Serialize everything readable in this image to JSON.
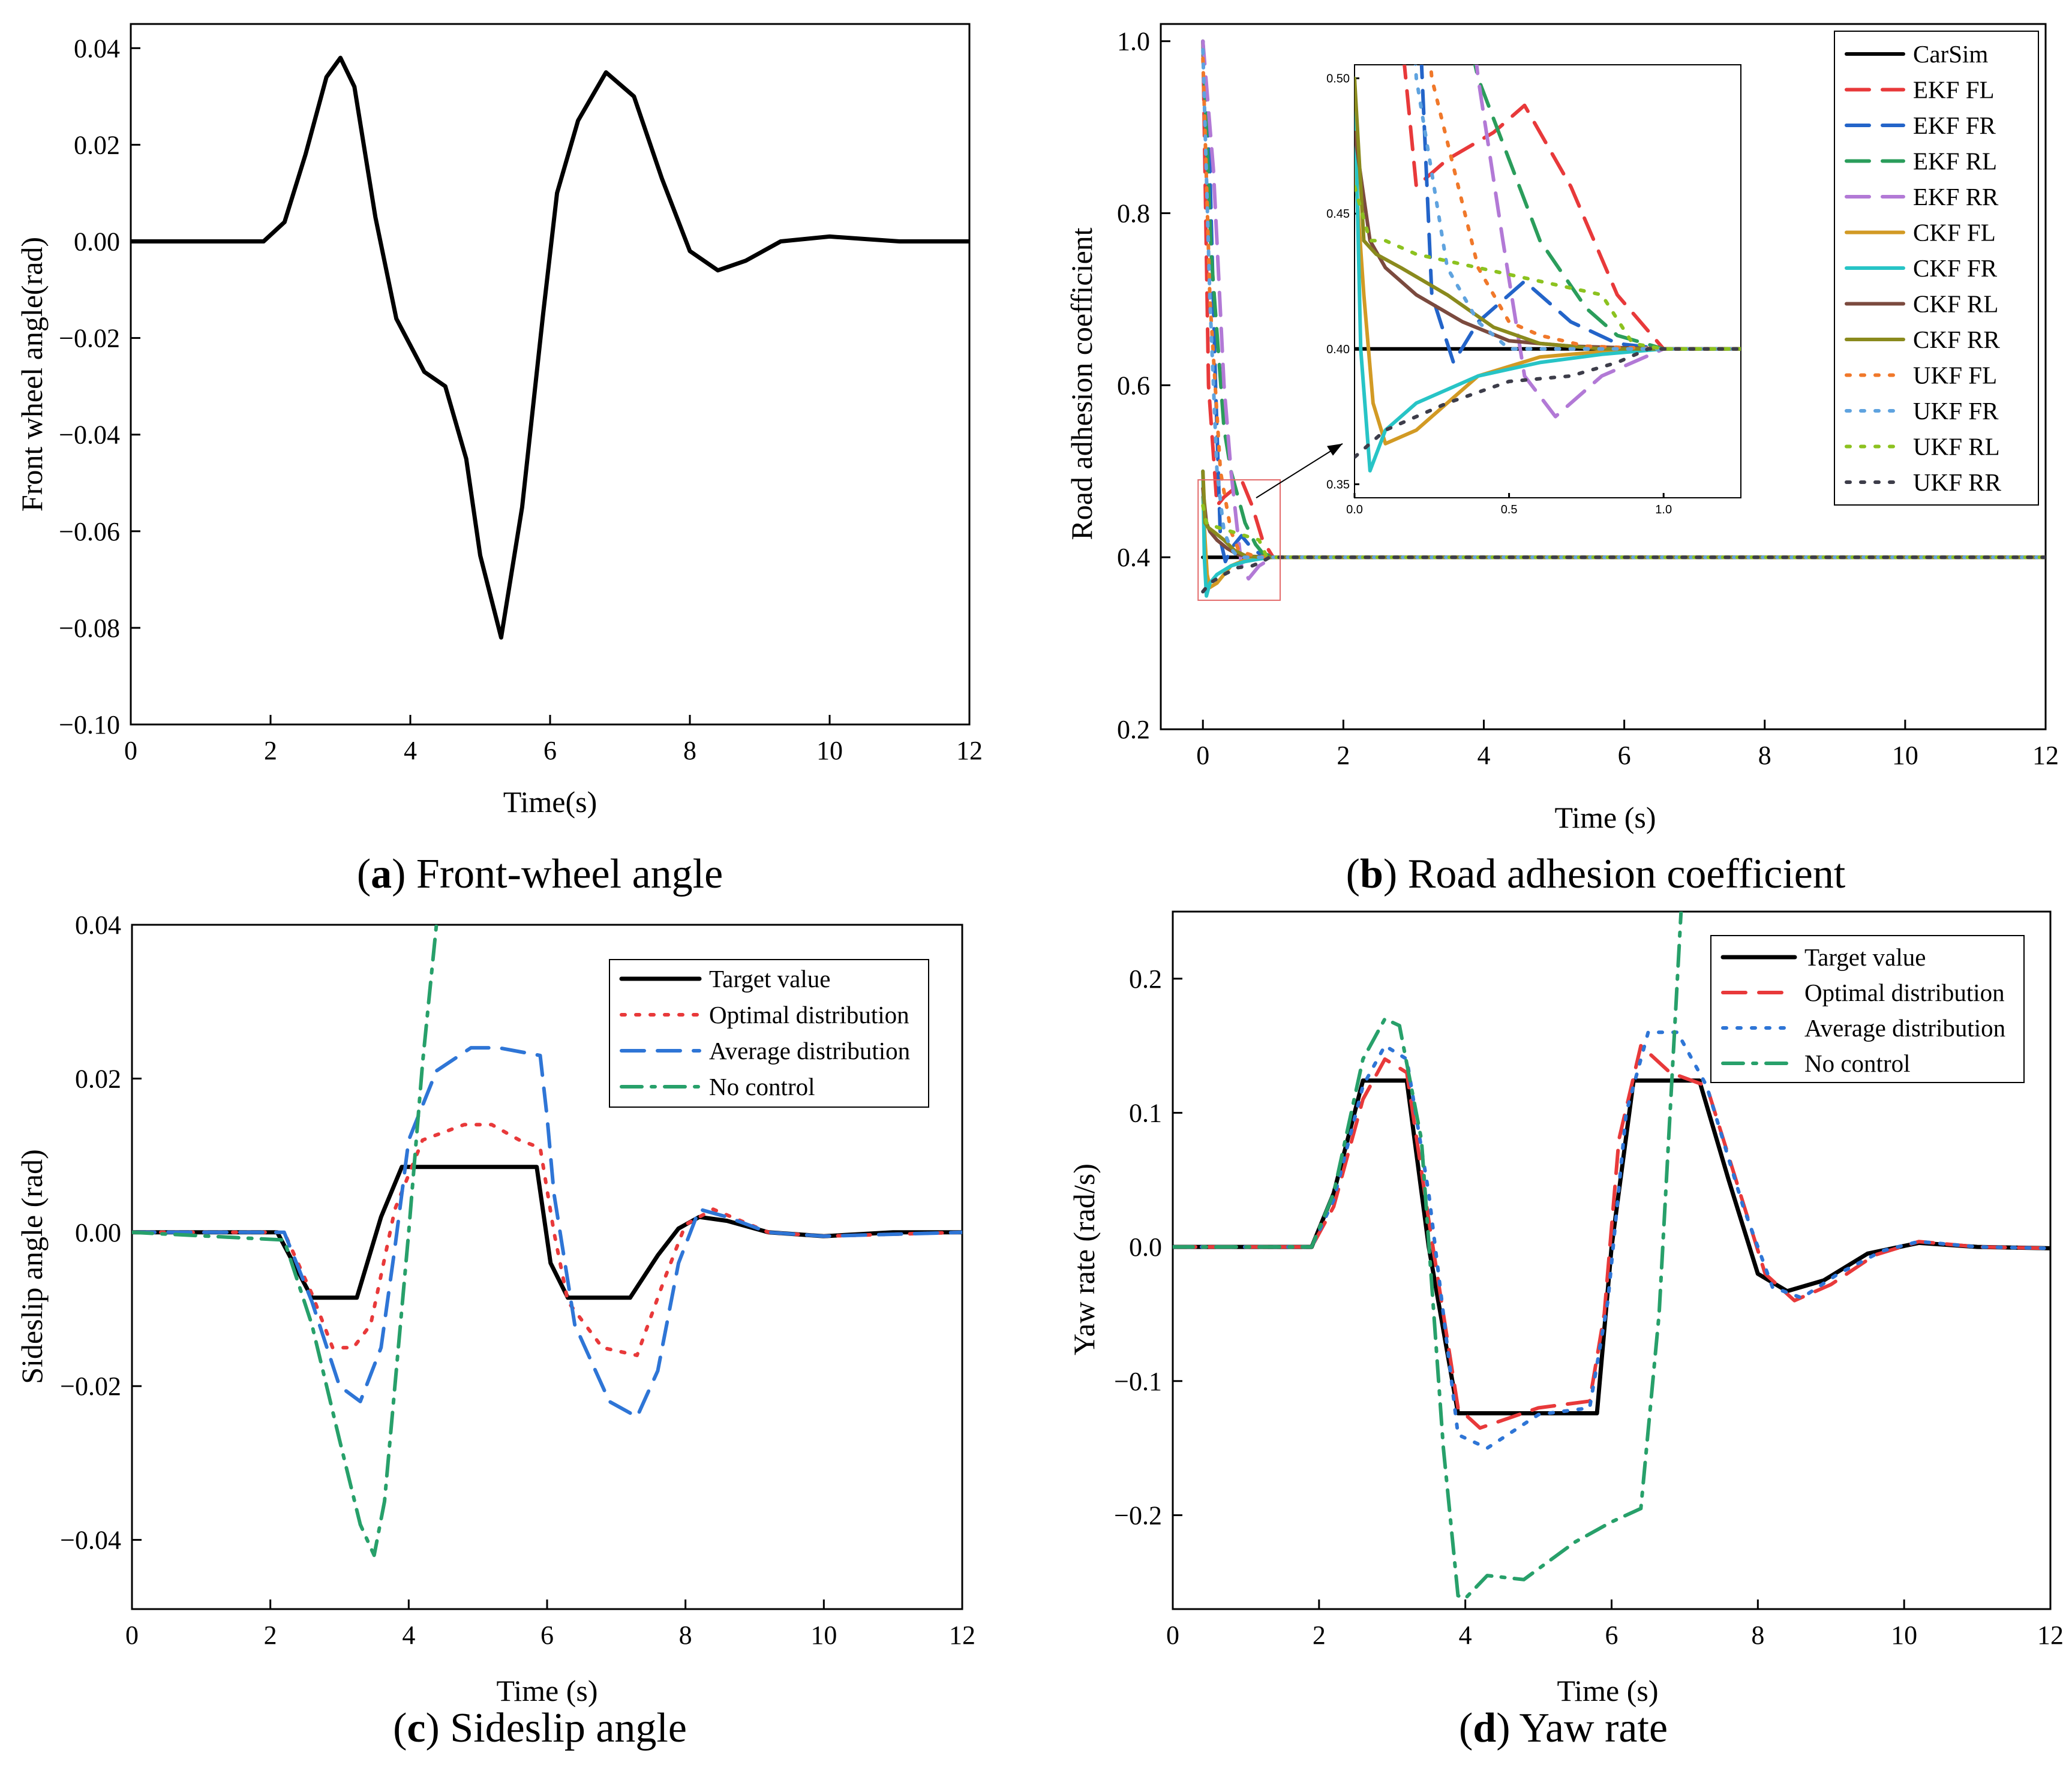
{
  "chart_data": [
    {
      "id": "a",
      "type": "line",
      "caption_letter": "a",
      "caption_text": "Front-wheel angle",
      "xlabel": "Time(s)",
      "ylabel": "Front wheel angle(rad)",
      "xlim": [
        0,
        12
      ],
      "ylim": [
        -0.1,
        0.045
      ],
      "xticks": [
        0,
        2,
        4,
        6,
        8,
        10,
        12
      ],
      "xtick_labels": [
        "0",
        "2",
        "4",
        "6",
        "8",
        "10",
        "12"
      ],
      "yticks": [
        0.04,
        0.02,
        0.0,
        -0.02,
        -0.04,
        -0.06,
        -0.08,
        -0.1
      ],
      "ytick_labels": [
        "0.04",
        "0.02",
        "0.00",
        "−0.02",
        "−0.04",
        "−0.06",
        "−0.08",
        "−0.10"
      ],
      "series": [
        {
          "name": "Front wheel angle",
          "color": "#000000",
          "dash": "solid",
          "width": 7,
          "x": [
            0,
            1.9,
            2.2,
            2.5,
            2.8,
            3.0,
            3.2,
            3.5,
            3.8,
            4.2,
            4.5,
            4.8,
            5.0,
            5.3,
            5.6,
            5.9,
            6.1,
            6.4,
            6.8,
            7.2,
            7.6,
            8.0,
            8.4,
            8.8,
            9.3,
            10.0,
            10.5,
            11.0,
            12.0
          ],
          "y": [
            0,
            0,
            0.004,
            0.018,
            0.034,
            0.038,
            0.032,
            0.005,
            -0.016,
            -0.027,
            -0.03,
            -0.045,
            -0.065,
            -0.082,
            -0.055,
            -0.015,
            0.01,
            0.025,
            0.035,
            0.03,
            0.013,
            -0.002,
            -0.006,
            -0.004,
            0,
            0.001,
            0.0005,
            0,
            0
          ]
        }
      ]
    },
    {
      "id": "b",
      "type": "line",
      "caption_letter": "b",
      "caption_text": "Road adhesion coefficient",
      "xlabel": "Time (s)",
      "ylabel": "Road adhesion coefficient",
      "xlim": [
        -0.6,
        12
      ],
      "ylim": [
        0.2,
        1.02
      ],
      "xticks": [
        0,
        2,
        4,
        6,
        8,
        10,
        12
      ],
      "xtick_labels": [
        "0",
        "2",
        "4",
        "6",
        "8",
        "10",
        "12"
      ],
      "yticks": [
        0.2,
        0.4,
        0.6,
        0.8,
        1.0
      ],
      "ytick_labels": [
        "0.2",
        "0.4",
        "0.6",
        "0.8",
        "1.0"
      ],
      "series": [
        {
          "name": "CarSim",
          "color": "#000000",
          "dash": "solid",
          "x": [
            0,
            12
          ],
          "y": [
            0.4,
            0.4
          ]
        },
        {
          "name": "EKF FL",
          "color": "#e8393a",
          "dash": "dash",
          "x": [
            0,
            0.08,
            0.2,
            0.3,
            0.45,
            0.55,
            0.7,
            0.85,
            1.0,
            12
          ],
          "y": [
            1.0,
            0.6,
            0.46,
            0.47,
            0.48,
            0.49,
            0.46,
            0.42,
            0.4,
            0.4
          ]
        },
        {
          "name": "EKF FR",
          "color": "#2364c9",
          "dash": "dash",
          "x": [
            0,
            0.1,
            0.18,
            0.25,
            0.32,
            0.4,
            0.55,
            0.7,
            0.85,
            1.0,
            12
          ],
          "y": [
            1.0,
            0.85,
            0.6,
            0.42,
            0.395,
            0.41,
            0.425,
            0.41,
            0.402,
            0.4,
            0.4
          ]
        },
        {
          "name": "EKF RL",
          "color": "#2a9d5b",
          "dash": "dash",
          "x": [
            0,
            0.12,
            0.3,
            0.4,
            0.5,
            0.6,
            0.75,
            0.85,
            1.0,
            12
          ],
          "y": [
            1.0,
            0.75,
            0.55,
            0.5,
            0.47,
            0.44,
            0.415,
            0.405,
            0.4,
            0.4
          ]
        },
        {
          "name": "EKF RR",
          "color": "#b279d6",
          "dash": "dash",
          "x": [
            0,
            0.15,
            0.3,
            0.4,
            0.48,
            0.55,
            0.65,
            0.8,
            1.0,
            12
          ],
          "y": [
            1.0,
            0.85,
            0.6,
            0.5,
            0.44,
            0.39,
            0.375,
            0.39,
            0.4,
            0.4
          ]
        },
        {
          "name": "CKF FL",
          "color": "#d29a24",
          "dash": "solid",
          "x": [
            0,
            0.03,
            0.06,
            0.1,
            0.2,
            0.4,
            0.6,
            0.8,
            1.0,
            12
          ],
          "y": [
            0.47,
            0.42,
            0.38,
            0.365,
            0.37,
            0.39,
            0.397,
            0.399,
            0.4,
            0.4
          ]
        },
        {
          "name": "CKF FR",
          "color": "#27c4c6",
          "dash": "solid",
          "x": [
            0,
            0.02,
            0.05,
            0.1,
            0.2,
            0.4,
            0.6,
            0.8,
            1.0,
            12
          ],
          "y": [
            0.5,
            0.4,
            0.355,
            0.37,
            0.38,
            0.39,
            0.395,
            0.398,
            0.4,
            0.4
          ]
        },
        {
          "name": "CKF RL",
          "color": "#7b4a3e",
          "dash": "solid",
          "x": [
            0,
            0.05,
            0.1,
            0.2,
            0.35,
            0.5,
            0.7,
            1.0,
            12
          ],
          "y": [
            0.48,
            0.44,
            0.43,
            0.42,
            0.41,
            0.403,
            0.401,
            0.4,
            0.4
          ]
        },
        {
          "name": "CKF RR",
          "color": "#8a8a1d",
          "dash": "solid",
          "x": [
            0,
            0.03,
            0.07,
            0.15,
            0.3,
            0.45,
            0.6,
            0.8,
            1.0,
            12
          ],
          "y": [
            0.5,
            0.44,
            0.435,
            0.43,
            0.42,
            0.408,
            0.402,
            0.4,
            0.4,
            0.4
          ]
        },
        {
          "name": "UKF FL",
          "color": "#f0782a",
          "dash": "dot",
          "x": [
            0,
            0.1,
            0.25,
            0.4,
            0.5,
            0.6,
            0.75,
            1.0,
            12
          ],
          "y": [
            0.98,
            0.7,
            0.5,
            0.43,
            0.41,
            0.405,
            0.401,
            0.4,
            0.4
          ]
        },
        {
          "name": "UKF FR",
          "color": "#5fa3df",
          "dash": "dot",
          "x": [
            0,
            0.1,
            0.2,
            0.3,
            0.4,
            0.5,
            0.7,
            1.0,
            12
          ],
          "y": [
            0.99,
            0.7,
            0.5,
            0.43,
            0.41,
            0.4,
            0.4,
            0.4,
            0.4
          ]
        },
        {
          "name": "UKF RL",
          "color": "#8cc21f",
          "dash": "dot",
          "x": [
            0,
            0.05,
            0.1,
            0.2,
            0.4,
            0.6,
            0.8,
            0.9,
            1.0,
            12
          ],
          "y": [
            0.46,
            0.44,
            0.44,
            0.435,
            0.43,
            0.425,
            0.42,
            0.402,
            0.4,
            0.4
          ]
        },
        {
          "name": "UKF RR",
          "color": "#3d3d4a",
          "dash": "dot",
          "x": [
            0,
            0.1,
            0.3,
            0.5,
            0.7,
            0.85,
            0.95,
            12
          ],
          "y": [
            0.36,
            0.37,
            0.38,
            0.388,
            0.39,
            0.395,
            0.4,
            0.4
          ]
        }
      ],
      "inset": {
        "xlim": [
          0,
          1.25
        ],
        "ylim": [
          0.345,
          0.505
        ],
        "xticks": [
          0,
          0.5,
          1.0
        ],
        "xtick_labels": [
          "0.0",
          "0.5",
          "1.0"
        ],
        "yticks": [
          0.35,
          0.4,
          0.45,
          0.5
        ],
        "ytick_labels": [
          "0.35",
          "0.40",
          "0.45",
          "0.50"
        ]
      }
    },
    {
      "id": "c",
      "type": "line",
      "caption_letter": "c",
      "caption_text": "Sideslip angle",
      "xlabel": "Time (s)",
      "ylabel": "Sideslip angle (rad)",
      "xlim": [
        0,
        12
      ],
      "ylim": [
        -0.049,
        0.04
      ],
      "xticks": [
        0,
        2,
        4,
        6,
        8,
        10,
        12
      ],
      "xtick_labels": [
        "0",
        "2",
        "4",
        "6",
        "8",
        "10",
        "12"
      ],
      "yticks": [
        0.04,
        0.02,
        0.0,
        -0.02,
        -0.04
      ],
      "ytick_labels": [
        "0.04",
        "0.02",
        "0.00",
        "−0.02",
        "−0.04"
      ],
      "series": [
        {
          "name": "Target value",
          "color": "#000000",
          "dash": "solid",
          "width": 7,
          "x": [
            0,
            2.1,
            2.6,
            3.25,
            3.6,
            3.9,
            5.85,
            6.05,
            6.3,
            7.2,
            7.6,
            7.9,
            8.2,
            8.6,
            9.2,
            10,
            11,
            12
          ],
          "y": [
            0,
            0,
            -0.0085,
            -0.0085,
            0.002,
            0.0085,
            0.0085,
            -0.004,
            -0.0085,
            -0.0085,
            -0.003,
            0.0005,
            0.002,
            0.0015,
            0.0,
            -0.0005,
            0,
            0
          ]
        },
        {
          "name": "Optimal distribution",
          "color": "#e8393a",
          "dash": "dot",
          "x": [
            0,
            2.2,
            2.6,
            2.9,
            3.2,
            3.45,
            3.8,
            4.2,
            4.8,
            5.2,
            5.6,
            5.9,
            6.1,
            6.3,
            6.8,
            7.3,
            7.7,
            8.0,
            8.4,
            9.2,
            10,
            12
          ],
          "y": [
            0,
            0,
            -0.008,
            -0.015,
            -0.015,
            -0.012,
            0.003,
            0.012,
            0.014,
            0.014,
            0.012,
            0.011,
            0.0,
            -0.009,
            -0.015,
            -0.016,
            -0.006,
            0.001,
            0.003,
            0.0,
            -0.0005,
            0
          ]
        },
        {
          "name": "Average distribution",
          "color": "#2e75d6",
          "dash": "dash",
          "x": [
            0,
            2.2,
            2.6,
            3.0,
            3.3,
            3.6,
            3.8,
            4.0,
            4.4,
            4.9,
            5.3,
            5.9,
            6.0,
            6.1,
            6.4,
            6.9,
            7.3,
            7.6,
            7.9,
            8.2,
            8.6,
            9.2,
            10,
            12
          ],
          "y": [
            0,
            0,
            -0.009,
            -0.02,
            -0.022,
            -0.015,
            -0.002,
            0.012,
            0.021,
            0.024,
            0.024,
            0.023,
            0.015,
            0.005,
            -0.012,
            -0.022,
            -0.024,
            -0.018,
            -0.004,
            0.003,
            0.002,
            0.0,
            -0.0005,
            0
          ]
        },
        {
          "name": "No control",
          "color": "#27a06a",
          "dash": "dashdot",
          "x": [
            0,
            2.2,
            2.6,
            3.0,
            3.3,
            3.5,
            3.65,
            3.8,
            4.0,
            4.2,
            4.4
          ],
          "y": [
            0,
            -0.001,
            -0.012,
            -0.027,
            -0.038,
            -0.042,
            -0.035,
            -0.02,
            0.0,
            0.022,
            0.04
          ]
        }
      ]
    },
    {
      "id": "d",
      "type": "line",
      "caption_letter": "d",
      "caption_text": "Yaw rate",
      "xlabel": "Time (s)",
      "ylabel": "Yaw rate (rad/s)",
      "xlim": [
        0,
        12
      ],
      "ylim": [
        -0.27,
        0.25
      ],
      "xticks": [
        0,
        2,
        4,
        6,
        8,
        10,
        12
      ],
      "xtick_labels": [
        "0",
        "2",
        "4",
        "6",
        "8",
        "10",
        "12"
      ],
      "yticks": [
        0.2,
        0.1,
        0.0,
        -0.1,
        -0.2
      ],
      "ytick_labels": [
        "0.2",
        "0.1",
        "0.0",
        "−0.1",
        "−0.2"
      ],
      "series": [
        {
          "name": "Target value",
          "color": "#000000",
          "dash": "solid",
          "width": 7,
          "x": [
            0,
            1.9,
            2.2,
            2.6,
            3.2,
            3.5,
            3.9,
            5.8,
            6.0,
            6.3,
            7.2,
            7.6,
            8.0,
            8.4,
            8.9,
            9.5,
            10.2,
            11,
            12
          ],
          "y": [
            0,
            0,
            0.04,
            0.124,
            0.124,
            0.0,
            -0.124,
            -0.124,
            0.0,
            0.124,
            0.124,
            0.05,
            -0.02,
            -0.033,
            -0.025,
            -0.005,
            0.003,
            0.0,
            -0.001
          ]
        },
        {
          "name": "Optimal distribution",
          "color": "#e8393a",
          "dash": "dash",
          "x": [
            0,
            1.9,
            2.2,
            2.6,
            2.9,
            3.2,
            3.5,
            3.9,
            4.2,
            5.0,
            5.7,
            5.9,
            6.1,
            6.4,
            6.8,
            7.3,
            7.7,
            8.1,
            8.5,
            9.0,
            9.6,
            10.2,
            11,
            12
          ],
          "y": [
            0,
            0,
            0.03,
            0.11,
            0.14,
            0.13,
            0.02,
            -0.12,
            -0.135,
            -0.12,
            -0.115,
            -0.05,
            0.08,
            0.15,
            0.13,
            0.12,
            0.05,
            -0.02,
            -0.04,
            -0.028,
            -0.006,
            0.004,
            0.0,
            -0.001
          ]
        },
        {
          "name": "Average distribution",
          "color": "#2e75d6",
          "dash": "dot",
          "x": [
            0,
            1.9,
            2.2,
            2.6,
            2.9,
            3.2,
            3.5,
            3.9,
            4.3,
            5.0,
            5.7,
            5.95,
            6.2,
            6.5,
            6.9,
            7.3,
            7.8,
            8.2,
            8.6,
            9.1,
            9.7,
            10.2,
            11,
            12
          ],
          "y": [
            0,
            0,
            0.035,
            0.12,
            0.15,
            0.14,
            0.04,
            -0.14,
            -0.15,
            -0.125,
            -0.12,
            -0.04,
            0.1,
            0.16,
            0.16,
            0.12,
            0.03,
            -0.03,
            -0.038,
            -0.02,
            -0.003,
            0.004,
            0.0,
            -0.001
          ]
        },
        {
          "name": "No control",
          "color": "#27a06a",
          "dash": "dashdot",
          "x": [
            0,
            1.9,
            2.2,
            2.6,
            2.9,
            3.1,
            3.4,
            3.7,
            3.9,
            4.0,
            4.3,
            4.8,
            5.5,
            6.0,
            6.4,
            6.65,
            6.85,
            6.95
          ],
          "y": [
            0,
            0,
            0.04,
            0.14,
            0.17,
            0.165,
            0.08,
            -0.15,
            -0.26,
            -0.262,
            -0.245,
            -0.248,
            -0.22,
            -0.205,
            -0.195,
            -0.05,
            0.15,
            0.25
          ]
        }
      ]
    }
  ]
}
